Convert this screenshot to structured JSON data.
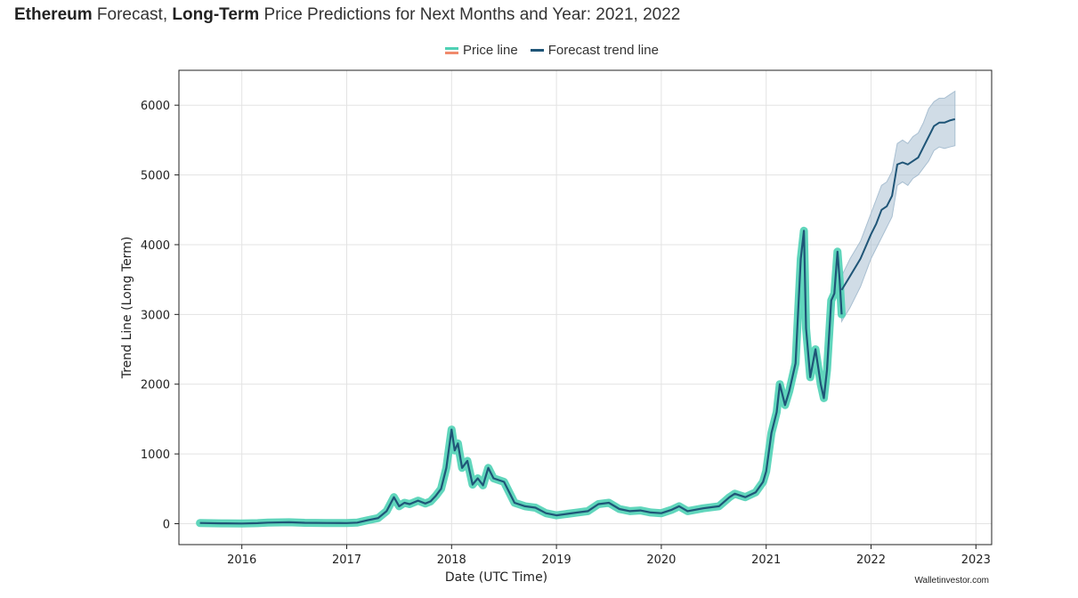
{
  "header": {
    "coin": "Ethereum",
    "part1": " Forecast, ",
    "emph": "Long-Term",
    "part2": " Price Predictions for Next Months and Year: 2021, 2022"
  },
  "credit": "Walletinvestor.com",
  "chart_data": {
    "type": "line",
    "title": "",
    "xlabel": "Date (UTC Time)",
    "ylabel": "Trend Line (Long Term)",
    "xlim": [
      2015.4,
      2023.15
    ],
    "ylim": [
      -300,
      6500
    ],
    "grid": true,
    "legend_position": "top-center",
    "xticks": [
      2016,
      2017,
      2018,
      2019,
      2020,
      2021,
      2022,
      2023
    ],
    "xtick_labels": [
      "2016",
      "2017",
      "2018",
      "2019",
      "2020",
      "2021",
      "2022",
      "2023"
    ],
    "yticks": [
      0,
      1000,
      2000,
      3000,
      4000,
      5000,
      6000
    ],
    "ytick_labels": [
      "0",
      "1000",
      "2000",
      "3000",
      "4000",
      "5000",
      "6000"
    ],
    "colors": {
      "price": "#4fd1b5",
      "price_legend_alt": "#f08a6c",
      "trend": "#1f5577",
      "band": "#a9bfd1"
    },
    "series": [
      {
        "name": "Price line",
        "x": [
          2015.6,
          2015.8,
          2016.0,
          2016.15,
          2016.25,
          2016.45,
          2016.6,
          2016.8,
          2017.0,
          2017.1,
          2017.2,
          2017.3,
          2017.38,
          2017.45,
          2017.5,
          2017.55,
          2017.6,
          2017.68,
          2017.75,
          2017.8,
          2017.85,
          2017.9,
          2017.95,
          2018.0,
          2018.03,
          2018.06,
          2018.1,
          2018.15,
          2018.2,
          2018.25,
          2018.3,
          2018.35,
          2018.4,
          2018.5,
          2018.6,
          2018.7,
          2018.8,
          2018.9,
          2019.0,
          2019.1,
          2019.2,
          2019.3,
          2019.4,
          2019.5,
          2019.6,
          2019.7,
          2019.8,
          2019.9,
          2020.0,
          2020.1,
          2020.17,
          2020.25,
          2020.4,
          2020.55,
          2020.65,
          2020.7,
          2020.8,
          2020.9,
          2020.97,
          2021.0,
          2021.05,
          2021.1,
          2021.13,
          2021.18,
          2021.22,
          2021.28,
          2021.33,
          2021.36,
          2021.38,
          2021.42,
          2021.47,
          2021.52,
          2021.55,
          2021.58,
          2021.62,
          2021.65,
          2021.68,
          2021.7,
          2021.72
        ],
        "y": [
          10,
          5,
          2,
          8,
          15,
          20,
          12,
          10,
          9,
          15,
          50,
          80,
          180,
          380,
          250,
          300,
          280,
          330,
          290,
          320,
          400,
          500,
          800,
          1350,
          1050,
          1150,
          800,
          900,
          560,
          650,
          550,
          800,
          650,
          600,
          300,
          250,
          230,
          150,
          120,
          140,
          160,
          180,
          280,
          300,
          210,
          180,
          190,
          160,
          150,
          200,
          250,
          180,
          220,
          250,
          380,
          430,
          380,
          450,
          600,
          750,
          1300,
          1600,
          2000,
          1700,
          1900,
          2300,
          3800,
          4200,
          2800,
          2100,
          2500,
          2000,
          1800,
          2200,
          3200,
          3300,
          3900,
          3500,
          3000
        ]
      },
      {
        "name": "Forecast trend line",
        "x": [
          2021.72,
          2021.8,
          2021.9,
          2022.0,
          2022.05,
          2022.1,
          2022.15,
          2022.2,
          2022.25,
          2022.3,
          2022.35,
          2022.4,
          2022.45,
          2022.5,
          2022.55,
          2022.6,
          2022.65,
          2022.7,
          2022.75,
          2022.8
        ],
        "y": [
          3350,
          3550,
          3800,
          4150,
          4300,
          4500,
          4550,
          4700,
          5150,
          5180,
          5150,
          5200,
          5250,
          5400,
          5550,
          5700,
          5750,
          5750,
          5780,
          5800
        ],
        "upper": [
          3550,
          3800,
          4050,
          4450,
          4650,
          4850,
          4900,
          5050,
          5450,
          5500,
          5450,
          5550,
          5600,
          5750,
          5950,
          6050,
          6100,
          6100,
          6150,
          6200
        ],
        "lower": [
          2900,
          3100,
          3400,
          3800,
          3950,
          4100,
          4250,
          4400,
          4850,
          4900,
          4850,
          4950,
          5000,
          5100,
          5200,
          5350,
          5400,
          5380,
          5400,
          5420
        ]
      }
    ]
  }
}
